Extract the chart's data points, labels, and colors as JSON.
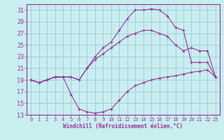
{
  "xlabel": "Windchill (Refroidissement éolien,°C)",
  "bg_color": "#c8eef0",
  "grid_color": "#a0c8d8",
  "line_color": "#993399",
  "xlim": [
    -0.5,
    23.5
  ],
  "ylim": [
    13,
    32
  ],
  "xticks": [
    0,
    1,
    2,
    3,
    4,
    5,
    6,
    7,
    8,
    9,
    10,
    11,
    12,
    13,
    14,
    15,
    16,
    17,
    18,
    19,
    20,
    21,
    22,
    23
  ],
  "yticks": [
    13,
    15,
    17,
    19,
    21,
    23,
    25,
    27,
    29,
    31
  ],
  "line_bottom": {
    "x": [
      0,
      1,
      2,
      3,
      4,
      5,
      6,
      7,
      8,
      9,
      10,
      11,
      12,
      13,
      14,
      15,
      16,
      17,
      18,
      19,
      20,
      21,
      22,
      23
    ],
    "y": [
      19.0,
      18.5,
      19.0,
      19.5,
      19.5,
      16.5,
      14.0,
      13.5,
      13.3,
      13.5,
      14.0,
      15.5,
      17.0,
      18.0,
      18.5,
      19.0,
      19.3,
      19.5,
      19.7,
      20.0,
      20.3,
      20.5,
      20.7,
      19.5
    ]
  },
  "line_top": {
    "x": [
      0,
      1,
      2,
      3,
      4,
      5,
      6,
      7,
      8,
      9,
      10,
      11,
      12,
      13,
      14,
      15,
      16,
      17,
      18,
      19,
      20,
      21,
      22,
      23
    ],
    "y": [
      19.0,
      18.5,
      19.0,
      19.5,
      19.5,
      19.5,
      19.0,
      21.0,
      23.0,
      24.5,
      25.5,
      27.5,
      29.5,
      31.0,
      31.0,
      31.2,
      31.0,
      30.0,
      28.0,
      27.5,
      22.0,
      22.0,
      22.0,
      19.5
    ]
  },
  "line_mid": {
    "x": [
      0,
      1,
      2,
      3,
      4,
      5,
      6,
      7,
      8,
      9,
      10,
      11,
      12,
      13,
      14,
      15,
      16,
      17,
      18,
      19,
      20,
      21,
      22,
      23
    ],
    "y": [
      19.0,
      18.5,
      19.0,
      19.5,
      19.5,
      19.5,
      19.0,
      21.0,
      22.5,
      23.5,
      24.5,
      25.5,
      26.5,
      27.0,
      27.5,
      27.5,
      27.0,
      26.5,
      25.0,
      24.0,
      24.5,
      24.0,
      24.0,
      19.5
    ]
  }
}
